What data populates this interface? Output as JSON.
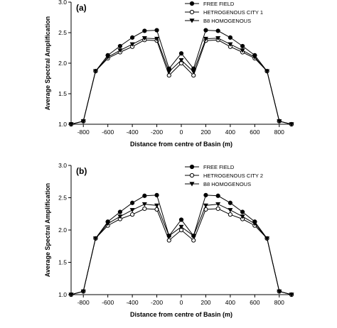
{
  "chart_data": [
    {
      "type": "line",
      "panel_label": "(a)",
      "xlabel": "Distance from centre of Basin (m)",
      "ylabel": "Average Spectral Amplification",
      "xlim": [
        -900,
        900
      ],
      "ylim": [
        1.0,
        3.0
      ],
      "xticks": [
        -800,
        -600,
        -400,
        -200,
        0,
        200,
        400,
        600,
        800
      ],
      "yticks": [
        "1.0",
        "1.5",
        "2.0",
        "2.5",
        "3.0"
      ],
      "grid": false,
      "legend_position": "top-right",
      "x": [
        -900,
        -800,
        -700,
        -600,
        -500,
        -400,
        -300,
        -200,
        -100,
        0,
        100,
        200,
        300,
        400,
        500,
        600,
        700,
        800,
        900
      ],
      "series": [
        {
          "name": "FREE FIELD",
          "marker": "filled-circle",
          "values": [
            1.0,
            1.05,
            1.87,
            2.13,
            2.28,
            2.42,
            2.53,
            2.54,
            1.91,
            2.16,
            1.91,
            2.54,
            2.53,
            2.42,
            2.28,
            2.13,
            1.87,
            1.05,
            1.0
          ]
        },
        {
          "name": "HETROGENOUS CITY 1",
          "marker": "open-circle",
          "values": [
            1.0,
            1.05,
            1.87,
            2.08,
            2.18,
            2.27,
            2.38,
            2.37,
            1.8,
            2.0,
            1.8,
            2.37,
            2.38,
            2.27,
            2.18,
            2.08,
            1.87,
            1.05,
            1.0
          ]
        },
        {
          "name": "B8 HOMOGENOUS",
          "marker": "filled-triangle-down",
          "values": [
            1.0,
            1.05,
            1.87,
            2.1,
            2.21,
            2.31,
            2.41,
            2.4,
            1.86,
            2.05,
            1.86,
            2.4,
            2.41,
            2.31,
            2.21,
            2.1,
            1.87,
            1.05,
            1.0
          ]
        }
      ]
    },
    {
      "type": "line",
      "panel_label": "(b)",
      "xlabel": "Distance from centre of Basin (m)",
      "ylabel": "Average Spectral Amplification",
      "xlim": [
        -900,
        900
      ],
      "ylim": [
        1.0,
        3.0
      ],
      "xticks": [
        -800,
        -600,
        -400,
        -200,
        0,
        200,
        400,
        600,
        800
      ],
      "yticks": [
        "1.0",
        "1.5",
        "2.0",
        "2.5",
        "3.0"
      ],
      "grid": false,
      "legend_position": "top-right",
      "x": [
        -900,
        -800,
        -700,
        -600,
        -500,
        -400,
        -300,
        -200,
        -100,
        0,
        100,
        200,
        300,
        400,
        500,
        600,
        700,
        800,
        900
      ],
      "series": [
        {
          "name": "FREE FIELD",
          "marker": "filled-circle",
          "values": [
            1.0,
            1.05,
            1.87,
            2.13,
            2.28,
            2.42,
            2.53,
            2.54,
            1.91,
            2.16,
            1.91,
            2.54,
            2.53,
            2.42,
            2.28,
            2.13,
            1.87,
            1.05,
            1.0
          ]
        },
        {
          "name": "HETROGENOUS CITY 2",
          "marker": "open-circle",
          "values": [
            1.0,
            1.05,
            1.87,
            2.07,
            2.17,
            2.24,
            2.33,
            2.32,
            1.84,
            2.0,
            1.84,
            2.32,
            2.33,
            2.24,
            2.17,
            2.07,
            1.87,
            1.05,
            1.0
          ]
        },
        {
          "name": "B8 HOMOGENOUS",
          "marker": "filled-triangle-down",
          "values": [
            1.0,
            1.05,
            1.87,
            2.1,
            2.21,
            2.31,
            2.4,
            2.38,
            1.91,
            2.05,
            1.91,
            2.38,
            2.4,
            2.31,
            2.21,
            2.1,
            1.87,
            1.05,
            1.0
          ]
        }
      ]
    }
  ]
}
